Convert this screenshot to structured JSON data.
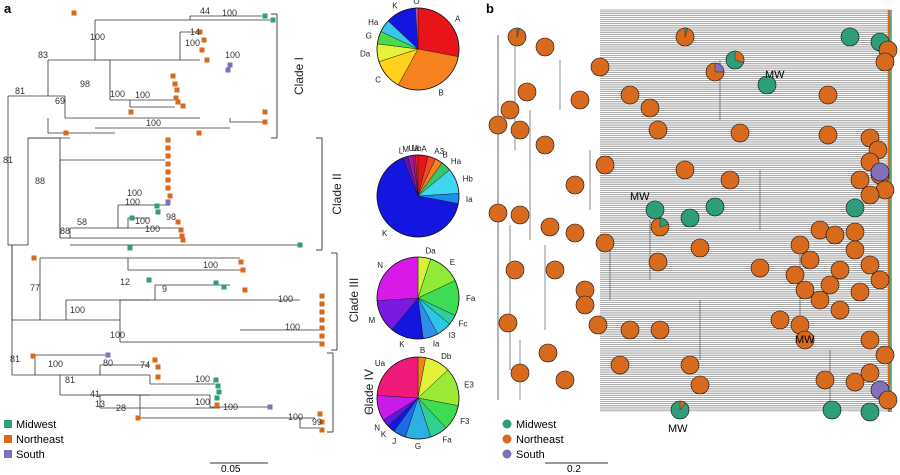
{
  "panels": {
    "a": "a",
    "b": "b"
  },
  "clades": [
    "Clade I",
    "Clade II",
    "Clade III",
    "Clade IV"
  ],
  "bootstrap_a": [
    "83",
    "81",
    "100",
    "44",
    "100",
    "14",
    "100",
    "100",
    "98",
    "69",
    "100",
    "100",
    "100",
    "81",
    "88",
    "100",
    "100",
    "58",
    "98",
    "100",
    "88",
    "100",
    "100",
    "9",
    "12",
    "77",
    "100",
    "100",
    "100",
    "100",
    "81",
    "100",
    "80",
    "74",
    "81",
    "100",
    "41",
    "100",
    "13",
    "100",
    "28",
    "100",
    "99"
  ],
  "legend": {
    "items": [
      {
        "label": "Midwest",
        "color": "#2e9e7a"
      },
      {
        "label": "Northeast",
        "color": "#d86a1e"
      },
      {
        "label": "South",
        "color": "#8470b8"
      }
    ]
  },
  "scale_a": "0.05",
  "scale_b": "0.2",
  "mw_label": "MW",
  "pies": [
    {
      "clade": "Clade I",
      "slices": [
        {
          "label": "A",
          "value": 28,
          "color": "#e8141a"
        },
        {
          "label": "B",
          "value": 30,
          "color": "#f5821f"
        },
        {
          "label": "C",
          "value": 12,
          "color": "#ffd11a"
        },
        {
          "label": "Da",
          "value": 7,
          "color": "#e5f23a"
        },
        {
          "label": "G",
          "value": 5,
          "color": "#4fd84a"
        },
        {
          "label": "Ha",
          "value": 5,
          "color": "#35c8e8"
        },
        {
          "label": "K",
          "value": 12,
          "color": "#1515e0"
        },
        {
          "label": "O",
          "value": 1,
          "color": "#b05ab0"
        }
      ]
    },
    {
      "clade": "Clade II",
      "slices": [
        {
          "label": "A",
          "value": 4,
          "color": "#e8141a"
        },
        {
          "label": "A3",
          "value": 3,
          "color": "#f04b25"
        },
        {
          "label": "B",
          "value": 3,
          "color": "#f5821f"
        },
        {
          "label": "Ha",
          "value": 4,
          "color": "#39c56a"
        },
        {
          "label": "Hb",
          "value": 10,
          "color": "#40d6f0"
        },
        {
          "label": "Ia",
          "value": 4,
          "color": "#1e8df0"
        },
        {
          "label": "K",
          "value": 66,
          "color": "#1515e0"
        },
        {
          "label": "L",
          "value": 2,
          "color": "#5a16b4"
        },
        {
          "label": "M",
          "value": 2,
          "color": "#9a1aa0"
        },
        {
          "label": "Ua",
          "value": 1,
          "color": "#c81670"
        },
        {
          "label": "Ub",
          "value": 1,
          "color": "#e21a3a"
        }
      ]
    },
    {
      "clade": "Clade III",
      "slices": [
        {
          "label": "Da",
          "value": 5,
          "color": "#d8f03a"
        },
        {
          "label": "E",
          "value": 13,
          "color": "#90ea38"
        },
        {
          "label": "Fa",
          "value": 14,
          "color": "#3edc52"
        },
        {
          "label": "Fc",
          "value": 4,
          "color": "#2ecf9e"
        },
        {
          "label": "I3",
          "value": 6,
          "color": "#2ec6e6"
        },
        {
          "label": "Ia",
          "value": 6,
          "color": "#2e8ee8"
        },
        {
          "label": "K",
          "value": 13,
          "color": "#1515e0"
        },
        {
          "label": "M",
          "value": 13,
          "color": "#7a1ae0"
        },
        {
          "label": "N",
          "value": 26,
          "color": "#d81ae8"
        }
      ]
    },
    {
      "clade": "Clade IV",
      "slices": [
        {
          "label": "B",
          "value": 3,
          "color": "#f5821f"
        },
        {
          "label": "Db",
          "value": 10,
          "color": "#e2f23a"
        },
        {
          "label": "E3",
          "value": 15,
          "color": "#9cea38"
        },
        {
          "label": "F3",
          "value": 10,
          "color": "#3edc52"
        },
        {
          "label": "Fa",
          "value": 7,
          "color": "#32d090"
        },
        {
          "label": "G",
          "value": 10,
          "color": "#2eb0e2"
        },
        {
          "label": "J",
          "value": 5,
          "color": "#1e6ae8"
        },
        {
          "label": "K",
          "value": 3,
          "color": "#1515e0"
        },
        {
          "label": "N",
          "value": 3,
          "color": "#5a1ae0"
        },
        {
          "label": "T",
          "value": 10,
          "color": "#c81ae8"
        },
        {
          "label": "Ua",
          "value": 24,
          "color": "#f01a7a"
        }
      ]
    }
  ]
}
